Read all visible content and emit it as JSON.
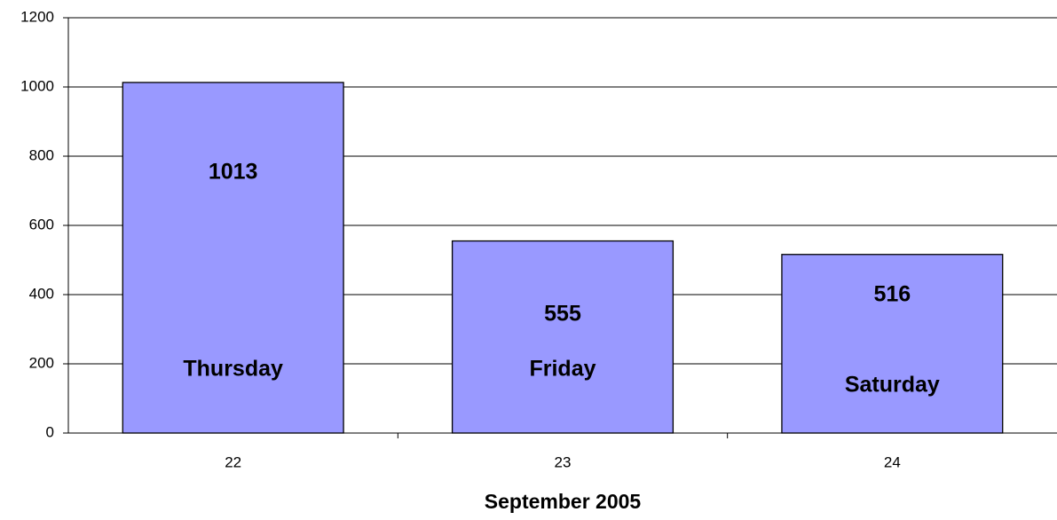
{
  "chart_data": {
    "type": "bar",
    "x_label": "September 2005",
    "categories": [
      "22",
      "23",
      "24"
    ],
    "values": [
      1013,
      555,
      516
    ],
    "annotations": [
      "Thursday",
      "Friday",
      "Saturday"
    ],
    "color": "#9999ff",
    "ylim": [
      0,
      1200
    ],
    "yticks": [
      0,
      200,
      400,
      600,
      800,
      1000,
      1200
    ],
    "grid": true
  }
}
